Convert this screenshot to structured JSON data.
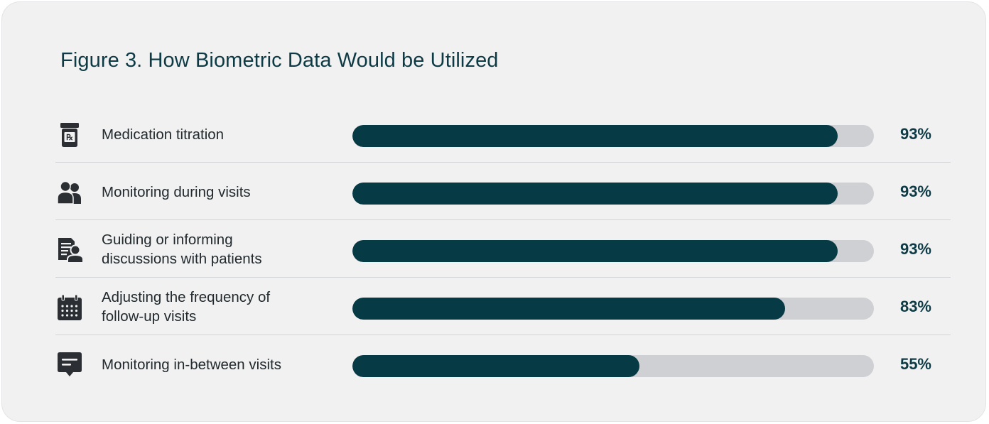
{
  "title": "Figure 3. How Biometric Data Would be Utilized",
  "colors": {
    "background": "#f1f1f2",
    "bar_fill": "#063a45",
    "bar_track": "#cfd0d3",
    "title": "#0d3b45",
    "icon": "#2b2f33"
  },
  "chart_data": {
    "type": "bar",
    "orientation": "horizontal",
    "title": "Figure 3. How Biometric Data Would be Utilized",
    "xlim": [
      0,
      100
    ],
    "unit": "%",
    "grid": false,
    "categories": [
      "Medication titration",
      "Monitoring during visits",
      "Guiding or informing discussions with patients",
      "Adjusting the frequency of follow-up visits",
      "Monitoring in-between visits"
    ],
    "values": [
      93,
      93,
      93,
      83,
      55
    ],
    "rows": [
      {
        "icon": "prescription-bottle-icon",
        "label_lines": [
          "Medication titration"
        ],
        "value": 93,
        "value_label": "93%"
      },
      {
        "icon": "people-icon",
        "label_lines": [
          "Monitoring during visits"
        ],
        "value": 93,
        "value_label": "93%"
      },
      {
        "icon": "patient-document-icon",
        "label_lines": [
          "Guiding or informing",
          "discussions with patients"
        ],
        "value": 93,
        "value_label": "93%"
      },
      {
        "icon": "calendar-icon",
        "label_lines": [
          "Adjusting the frequency of",
          "follow-up visits"
        ],
        "value": 83,
        "value_label": "83%"
      },
      {
        "icon": "chat-bubble-icon",
        "label_lines": [
          "Monitoring in-between visits"
        ],
        "value": 55,
        "value_label": "55%"
      }
    ]
  }
}
